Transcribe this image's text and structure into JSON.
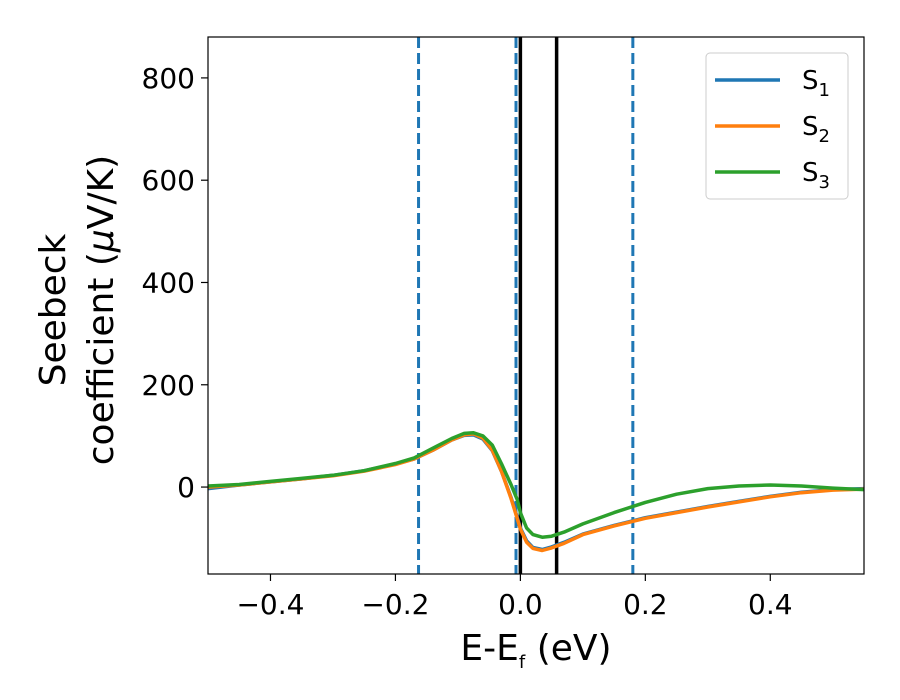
{
  "chart_data": {
    "type": "line",
    "title": "",
    "xlabel": {
      "main": "E-E",
      "sub": "f",
      "unit": " (eV)"
    },
    "ylabel": {
      "line1": "Seebeck",
      "line2": "coefficient  (",
      "mu": "μ",
      "unit": "V/K)"
    },
    "xlim": [
      -0.5,
      0.55
    ],
    "ylim": [
      -170,
      880
    ],
    "xticks": [
      -0.4,
      -0.2,
      0.0,
      0.2,
      0.4
    ],
    "xtick_labels": [
      "−0.4",
      "−0.2",
      "0.0",
      "0.2",
      "0.4"
    ],
    "yticks": [
      0,
      200,
      400,
      600,
      800
    ],
    "ytick_labels": [
      "0",
      "200",
      "400",
      "600",
      "800"
    ],
    "grid": false,
    "legend_position": "top-right",
    "vlines": [
      {
        "x": -0.163,
        "style": "dashed",
        "color": "#1f77b4"
      },
      {
        "x": -0.007,
        "style": "dashed",
        "color": "#1f77b4"
      },
      {
        "x": 0.18,
        "style": "dashed",
        "color": "#1f77b4"
      },
      {
        "x": 0.0,
        "style": "solid",
        "color": "#000000"
      },
      {
        "x": 0.058,
        "style": "solid",
        "color": "#000000"
      }
    ],
    "series": [
      {
        "name": "S",
        "sub": "1",
        "color": "#1f77b4",
        "x": [
          -0.5,
          -0.45,
          -0.4,
          -0.35,
          -0.3,
          -0.25,
          -0.2,
          -0.17,
          -0.14,
          -0.11,
          -0.09,
          -0.075,
          -0.06,
          -0.045,
          -0.03,
          -0.015,
          -0.005,
          0.0,
          0.01,
          0.02,
          0.035,
          0.05,
          0.07,
          0.1,
          0.15,
          0.2,
          0.25,
          0.3,
          0.35,
          0.4,
          0.45,
          0.5,
          0.55
        ],
        "y": [
          -3,
          4,
          10,
          16,
          23,
          32,
          45,
          55,
          72,
          92,
          101,
          102,
          94,
          71,
          30,
          -20,
          -60,
          -80,
          -105,
          -118,
          -122,
          -117,
          -108,
          -92,
          -75,
          -60,
          -49,
          -38,
          -28,
          -18,
          -10,
          -5,
          -3
        ]
      },
      {
        "name": "S",
        "sub": "2",
        "color": "#ff7f0e",
        "x": [
          -0.5,
          -0.45,
          -0.4,
          -0.35,
          -0.3,
          -0.25,
          -0.2,
          -0.17,
          -0.14,
          -0.11,
          -0.09,
          -0.075,
          -0.06,
          -0.045,
          -0.03,
          -0.015,
          -0.005,
          0.0,
          0.01,
          0.02,
          0.035,
          0.05,
          0.07,
          0.1,
          0.15,
          0.2,
          0.25,
          0.3,
          0.35,
          0.4,
          0.45,
          0.5,
          0.55
        ],
        "y": [
          0,
          4,
          10,
          16,
          22,
          31,
          44,
          55,
          72,
          92,
          102,
          104,
          96,
          72,
          30,
          -22,
          -62,
          -82,
          -108,
          -120,
          -124,
          -119,
          -110,
          -93,
          -76,
          -61,
          -50,
          -39,
          -29,
          -19,
          -11,
          -6,
          -4
        ]
      },
      {
        "name": "S",
        "sub": "3",
        "color": "#2ca02c",
        "x": [
          -0.5,
          -0.45,
          -0.4,
          -0.35,
          -0.3,
          -0.25,
          -0.2,
          -0.17,
          -0.14,
          -0.11,
          -0.09,
          -0.075,
          -0.06,
          -0.045,
          -0.03,
          -0.015,
          -0.005,
          0.0,
          0.01,
          0.02,
          0.035,
          0.05,
          0.07,
          0.1,
          0.15,
          0.2,
          0.25,
          0.3,
          0.35,
          0.4,
          0.45,
          0.5,
          0.55
        ],
        "y": [
          2,
          5,
          11,
          17,
          23,
          32,
          46,
          57,
          76,
          95,
          105,
          106,
          100,
          82,
          45,
          5,
          -25,
          -50,
          -80,
          -93,
          -98,
          -96,
          -88,
          -72,
          -50,
          -30,
          -14,
          -3,
          2,
          4,
          2,
          -2,
          -5
        ]
      }
    ]
  }
}
